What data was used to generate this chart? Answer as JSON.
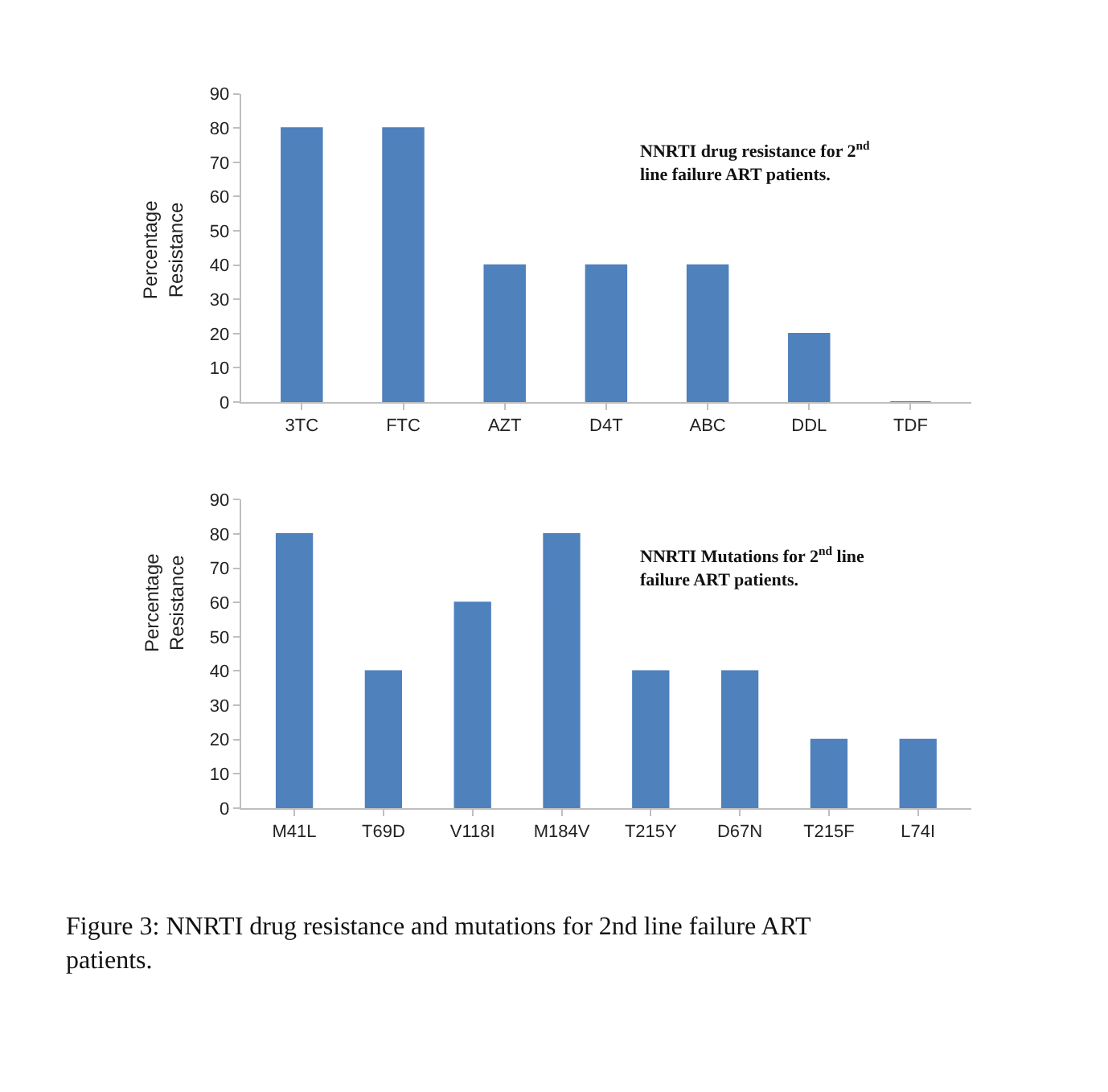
{
  "chart_data": [
    {
      "type": "bar",
      "ylabel": "Percentage Resistance",
      "categories": [
        "3TC",
        "FTC",
        "AZT",
        "D4T",
        "ABC",
        "DDL",
        "TDF"
      ],
      "values": [
        80,
        80,
        40,
        40,
        40,
        20,
        0
      ],
      "color": "#4f81bd",
      "ylim": [
        0,
        90
      ],
      "yticks": [
        0,
        10,
        20,
        30,
        40,
        50,
        60,
        70,
        80,
        90
      ],
      "annotations": [
        "NNRTI drug resistance for 2$^{nd}$ line failure ART patients."
      ]
    },
    {
      "type": "bar",
      "ylabel": "Percentage Resistance",
      "categories": [
        "M41L",
        "T69D",
        "V118I",
        "M184V",
        "T215Y",
        "D67N",
        "T215F",
        "L74I"
      ],
      "values": [
        80,
        40,
        60,
        80,
        40,
        40,
        20,
        20
      ],
      "color": "#4f81bd",
      "ylim": [
        0,
        90
      ],
      "yticks": [
        0,
        10,
        20,
        30,
        40,
        50,
        60,
        70,
        80,
        90
      ],
      "annotations": [
        "NNRTI Mutations for 2$^{nd}$ line failure ART patients.",
        "Figure 3: NNRTI drug resistance and mutations for 2nd line failure ART patients."
      ]
    }
  ]
}
